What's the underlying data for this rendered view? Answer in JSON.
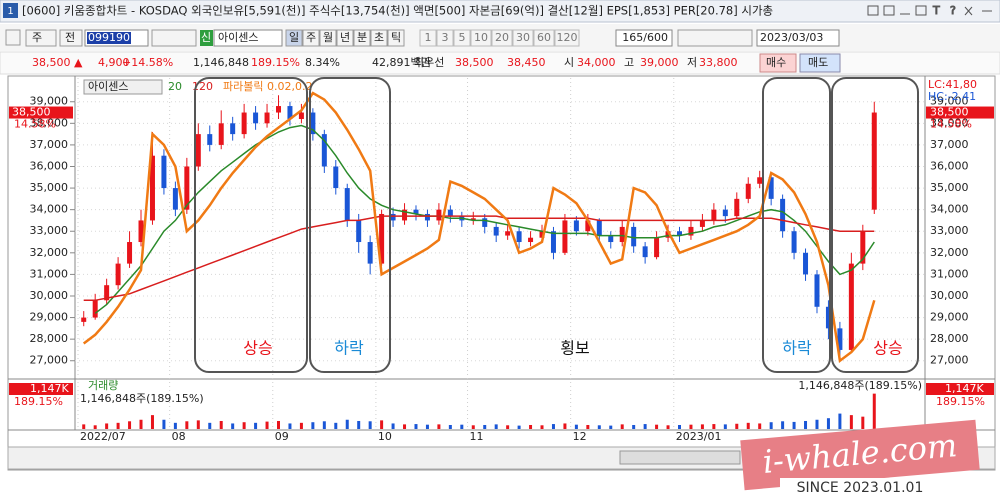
{
  "window": {
    "title": "[0600] 키움종합차트 - KOSDAQ 외국인보유[5,591(천)] 주식수[13,754(천)] 액면[500] 자본금[69(억)] 결산[12월] EPS[1,853] PER[20.78] 시가총",
    "icon": "1"
  },
  "toolbar": {
    "period": "주",
    "prev": "전",
    "code": "099190",
    "flag": "신",
    "name": "아이센스",
    "units": [
      "일",
      "주",
      "월",
      "년",
      "분",
      "초",
      "틱"
    ],
    "intervals": [
      "1",
      "3",
      "5",
      "10",
      "20",
      "30",
      "60",
      "120"
    ],
    "count": "165/600",
    "date": "2023/03/03"
  },
  "quote": {
    "price": "38,500 ▲",
    "change": "4,900",
    "rate": "+14.58%",
    "volume": "1,146,848",
    "volume_rate": "189.15%",
    "turnover": "8.34%",
    "amount": "42,891백만",
    "best": "최우선",
    "ask": "38,500",
    "bid": "38,450",
    "open_label": "시",
    "open": "34,000",
    "high_label": "고",
    "high": "39,000",
    "low_label": "저",
    "low": "33,800",
    "buy": "매수",
    "sell": "매도"
  },
  "chart_data": {
    "type": "candlestick",
    "title": "아이센스",
    "categories": [
      "2022/07",
      null,
      null,
      null,
      null,
      null,
      null,
      null,
      "08",
      null,
      null,
      null,
      null,
      null,
      null,
      null,
      null,
      "09",
      null,
      null,
      null,
      null,
      null,
      null,
      null,
      null,
      "10",
      null,
      null,
      null,
      null,
      null,
      null,
      null,
      "11",
      null,
      null,
      null,
      null,
      null,
      null,
      null,
      null,
      "12",
      null,
      null,
      null,
      null,
      null,
      null,
      null,
      null,
      "2023/01",
      null,
      null,
      null,
      null,
      null,
      null,
      null,
      null,
      null,
      null,
      null,
      null,
      null,
      null,
      null,
      null,
      null
    ],
    "open": [
      28800,
      29000,
      29800,
      30500,
      31500,
      32500,
      33500,
      36500,
      35000,
      34000,
      36000,
      37500,
      37000,
      38000,
      37500,
      38500,
      38000,
      38500,
      38800,
      38200,
      38500,
      37500,
      36000,
      35000,
      33500,
      32500,
      31500,
      33800,
      33500,
      34000,
      33800,
      33500,
      34000,
      33700,
      33500,
      33600,
      33200,
      32800,
      33000,
      32500,
      32700,
      33000,
      32000,
      33500,
      33000,
      33500,
      32800,
      32500,
      33200,
      32300,
      31800,
      32700,
      33000,
      32800,
      33200,
      33500,
      34000,
      33700,
      34500,
      35200,
      35500,
      34500,
      33000,
      32000,
      31000,
      29500,
      28500,
      27500,
      31500,
      34000
    ],
    "high": [
      29300,
      30100,
      30800,
      31800,
      33000,
      34000,
      37600,
      36800,
      35300,
      36400,
      38000,
      37900,
      38600,
      38300,
      38900,
      38800,
      38900,
      39300,
      39000,
      38900,
      38700,
      37700,
      36300,
      35200,
      33800,
      32800,
      34000,
      34100,
      34300,
      34200,
      34000,
      34300,
      34200,
      33900,
      33900,
      33800,
      33400,
      33300,
      33200,
      33000,
      33300,
      33200,
      33800,
      33700,
      33800,
      33600,
      33000,
      33500,
      33400,
      32500,
      33000,
      33300,
      33200,
      33500,
      33800,
      34300,
      34200,
      34800,
      35500,
      35800,
      35700,
      34700,
      33200,
      32200,
      31200,
      29800,
      28800,
      32000,
      33300,
      39000
    ],
    "low": [
      28600,
      28900,
      29600,
      30300,
      31300,
      32300,
      33300,
      34700,
      33700,
      33800,
      35800,
      36700,
      36800,
      37200,
      37300,
      37700,
      37800,
      38200,
      37900,
      38000,
      37200,
      35700,
      34700,
      33200,
      32000,
      31000,
      31400,
      33200,
      33300,
      33500,
      33200,
      33300,
      33400,
      33200,
      33300,
      32900,
      32500,
      32600,
      32200,
      32300,
      32500,
      31700,
      31900,
      32800,
      32800,
      32500,
      32200,
      32300,
      32000,
      31500,
      31700,
      32500,
      32500,
      32600,
      33000,
      33300,
      33400,
      33600,
      34300,
      35000,
      34200,
      32700,
      31700,
      30700,
      29200,
      28000,
      27000,
      27400,
      31200,
      33800
    ],
    "close": [
      29000,
      29800,
      30500,
      31500,
      32500,
      33500,
      36500,
      35000,
      34000,
      36000,
      37500,
      37000,
      38000,
      37500,
      38500,
      38000,
      38500,
      38800,
      38200,
      38500,
      37500,
      36000,
      35000,
      33500,
      32500,
      31500,
      33800,
      33500,
      34000,
      33800,
      33500,
      34000,
      33700,
      33500,
      33600,
      33200,
      32800,
      33000,
      32500,
      32700,
      33000,
      32000,
      33500,
      33000,
      33500,
      32800,
      32500,
      33200,
      32300,
      31800,
      32700,
      33000,
      32800,
      33200,
      33500,
      34000,
      33700,
      34500,
      35200,
      35500,
      34500,
      33000,
      32000,
      31000,
      29500,
      28500,
      27500,
      31500,
      33000,
      38500
    ],
    "up_color": "#e8141b",
    "down_color": "#1a56d6",
    "series": [
      {
        "name": "20",
        "color": "#2a8a2a",
        "values": [
          null,
          29200,
          29600,
          30200,
          30800,
          31400,
          32200,
          33000,
          33500,
          34200,
          34800,
          35300,
          35800,
          36200,
          36600,
          37000,
          37300,
          37600,
          37800,
          37900,
          37700,
          37200,
          36500,
          35700,
          35000,
          34500,
          34200,
          34000,
          33900,
          33800,
          33700,
          33700,
          33600,
          33600,
          33500,
          33500,
          33400,
          33300,
          33200,
          33100,
          33000,
          32900,
          32900,
          32900,
          32900,
          32800,
          32800,
          32800,
          32700,
          32700,
          32700,
          32800,
          32800,
          32900,
          33000,
          33200,
          33300,
          33500,
          33700,
          33900,
          34000,
          33900,
          33500,
          33000,
          32300,
          31600,
          31000,
          31200,
          31700,
          32500
        ]
      },
      {
        "name": "120",
        "color": "#d81e1e",
        "values": [
          29800,
          29800,
          29900,
          30000,
          30100,
          30300,
          30500,
          30700,
          30900,
          31100,
          31300,
          31500,
          31700,
          31900,
          32100,
          32300,
          32500,
          32700,
          32900,
          33100,
          33200,
          33300,
          33400,
          33500,
          33500,
          33600,
          33700,
          33700,
          33700,
          33700,
          33700,
          33700,
          33700,
          33700,
          33700,
          33700,
          33700,
          33600,
          33600,
          33600,
          33600,
          33600,
          33600,
          33600,
          33600,
          33500,
          33500,
          33500,
          33500,
          33500,
          33500,
          33500,
          33500,
          33500,
          33500,
          33500,
          33500,
          33600,
          33600,
          33600,
          33600,
          33500,
          33400,
          33300,
          33200,
          33100,
          33000,
          33000,
          33000,
          33000
        ]
      },
      {
        "name": "파라볼릭 0.02,0.2",
        "color": "#f07a14",
        "values": [
          27800,
          28200,
          28800,
          29500,
          30300,
          31200,
          37500,
          37000,
          36000,
          33000,
          33500,
          34200,
          35000,
          35700,
          36300,
          36900,
          37400,
          37800,
          38200,
          38600,
          39400,
          39100,
          38500,
          37700,
          36800,
          35800,
          31000,
          31300,
          31600,
          31900,
          32200,
          32600,
          35300,
          35100,
          34800,
          34500,
          34000,
          33500,
          32000,
          32200,
          32500,
          35000,
          34700,
          34300,
          33500,
          32500,
          31500,
          31700,
          35000,
          34800,
          34200,
          33000,
          32000,
          32200,
          32400,
          32600,
          32800,
          33000,
          33300,
          33700,
          35700,
          35400,
          34800,
          33800,
          32500,
          30500,
          27000,
          27400,
          28000,
          29800
        ]
      }
    ],
    "ylim": [
      26200,
      40100
    ],
    "yticks": [
      {
        "value": 27000,
        "label": "27,000"
      },
      {
        "value": 28000,
        "label": "28,000"
      },
      {
        "value": 29000,
        "label": "29,000"
      },
      {
        "value": 30000,
        "label": "30,000"
      },
      {
        "value": 31000,
        "label": "31,000"
      },
      {
        "value": 32000,
        "label": "32,000"
      },
      {
        "value": 33000,
        "label": "33,000"
      },
      {
        "value": 34000,
        "label": "34,000"
      },
      {
        "value": 35000,
        "label": "35,000"
      },
      {
        "value": 36000,
        "label": "36,000"
      },
      {
        "value": 37000,
        "label": "37,000"
      },
      {
        "value": 38000,
        "label": "38,000"
      },
      {
        "value": 39000,
        "label": "39,000"
      }
    ],
    "grid": true,
    "price_label": "38,500",
    "rate_label": "14.58%",
    "lc": "LC:41,80",
    "hc": "HC:-2,41",
    "annotations": [
      {
        "text": "상승",
        "color": "#e8141b"
      },
      {
        "text": "하락",
        "color": "#1a8ad6"
      },
      {
        "text": "횡보",
        "color": "#111111"
      },
      {
        "text": "하락",
        "color": "#1a8ad6"
      },
      {
        "text": "상승",
        "color": "#e8141b"
      }
    ],
    "volume": {
      "title": "거래량",
      "summary": "1,146,848주(189.15%)",
      "badge": "1,147K",
      "badge_rate": "189.15%",
      "ylim": [
        0,
        1200000
      ],
      "values": [
        150000,
        120000,
        180000,
        200000,
        250000,
        300000,
        450000,
        300000,
        200000,
        250000,
        280000,
        200000,
        260000,
        180000,
        220000,
        200000,
        240000,
        260000,
        180000,
        200000,
        220000,
        250000,
        200000,
        300000,
        260000,
        250000,
        280000,
        180000,
        150000,
        160000,
        140000,
        150000,
        130000,
        140000,
        120000,
        130000,
        150000,
        120000,
        110000,
        130000,
        120000,
        160000,
        180000,
        140000,
        130000,
        120000,
        110000,
        150000,
        130000,
        160000,
        140000,
        120000,
        130000,
        140000,
        150000,
        160000,
        150000,
        170000,
        200000,
        180000,
        220000,
        250000,
        230000,
        260000,
        300000,
        350000,
        500000,
        450000,
        400000,
        1146848
      ]
    }
  },
  "watermark": {
    "site": "i-whale.com",
    "since": "SINCE 2023.01.01"
  }
}
